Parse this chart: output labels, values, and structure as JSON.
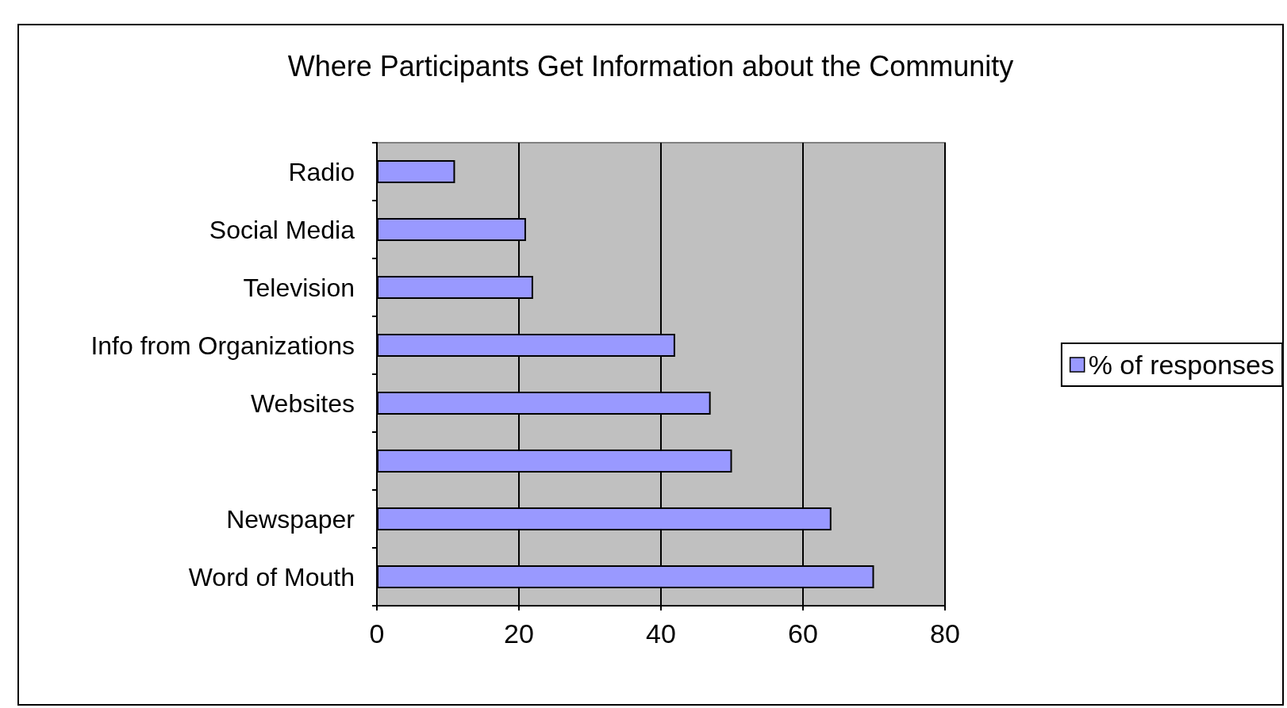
{
  "chart_data": {
    "type": "bar",
    "orientation": "horizontal",
    "title": "Where Participants Get Information about the Community",
    "categories": [
      "Radio",
      "Social Media",
      "Television",
      "Info from Organizations",
      "Websites",
      null,
      "Newspaper",
      "Word of Mouth"
    ],
    "series": [
      {
        "name": "% of responses",
        "color": "#9999ff",
        "values": [
          11,
          21,
          22,
          42,
          47,
          50,
          64,
          70
        ]
      }
    ],
    "xlim": [
      0,
      80
    ],
    "xticks": [
      0,
      20,
      40,
      60,
      80
    ],
    "grid": "x",
    "legend": "right"
  }
}
